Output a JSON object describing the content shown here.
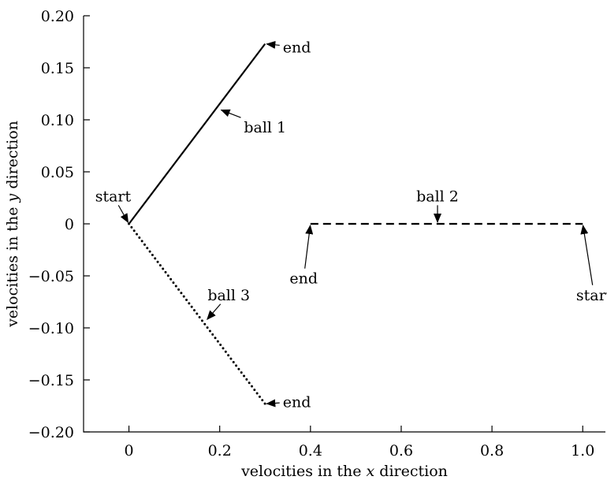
{
  "chart_data": {
    "type": "line",
    "title": "",
    "xlabel": {
      "pre": "velocities in the ",
      "var": "x",
      "post": " direction"
    },
    "ylabel": {
      "pre": "velocities in the ",
      "var": "y",
      "post": " direction"
    },
    "xlim": [
      -0.1,
      1.05
    ],
    "ylim": [
      -0.2,
      0.2
    ],
    "xticks": [
      0,
      0.2,
      0.4,
      0.6,
      0.8,
      1.0
    ],
    "xtick_labels": [
      "0",
      "0.2",
      "0.4",
      "0.6",
      "0.8",
      "1.0"
    ],
    "yticks": [
      0.2,
      0.15,
      0.1,
      0.05,
      0,
      -0.05,
      -0.1,
      -0.15,
      -0.2
    ],
    "ytick_labels": [
      "0.20",
      "0.15",
      "0.10",
      "0.05",
      "0",
      "−0.05",
      "−0.10",
      "−0.15",
      "−0.20"
    ],
    "grid": false,
    "series": [
      {
        "style": "solid",
        "x": [
          0,
          0.3
        ],
        "y": [
          0,
          0.173
        ]
      },
      {
        "style": "dashed",
        "x": [
          0.4,
          1.0
        ],
        "y": [
          0,
          0
        ]
      },
      {
        "style": "dotted",
        "x": [
          0,
          0.3
        ],
        "y": [
          0,
          -0.173
        ]
      }
    ],
    "annotations": [
      {
        "text": "end",
        "at": [
          0.3,
          0.173
        ],
        "text_pos": [
          0.37,
          0.17
        ]
      },
      {
        "text": "ball 1",
        "at": [
          0.2,
          0.11
        ],
        "text_pos": [
          0.3,
          0.093
        ]
      },
      {
        "text": "start",
        "at": [
          0,
          0
        ],
        "text_pos": [
          -0.035,
          0.027
        ]
      },
      {
        "text": "ball 2",
        "at": [
          0.68,
          0
        ],
        "text_pos": [
          0.68,
          0.027
        ]
      },
      {
        "text": "end",
        "at": [
          0.4,
          0
        ],
        "text_pos": [
          0.385,
          -0.052
        ]
      },
      {
        "text": "start",
        "at": [
          1.0,
          0
        ],
        "text_pos": [
          1.025,
          -0.068
        ]
      },
      {
        "text": "ball 3",
        "at": [
          0.17,
          -0.093
        ],
        "text_pos": [
          0.22,
          -0.068
        ]
      },
      {
        "text": "end",
        "at": [
          0.3,
          -0.173
        ],
        "text_pos": [
          0.37,
          -0.171
        ]
      }
    ]
  }
}
